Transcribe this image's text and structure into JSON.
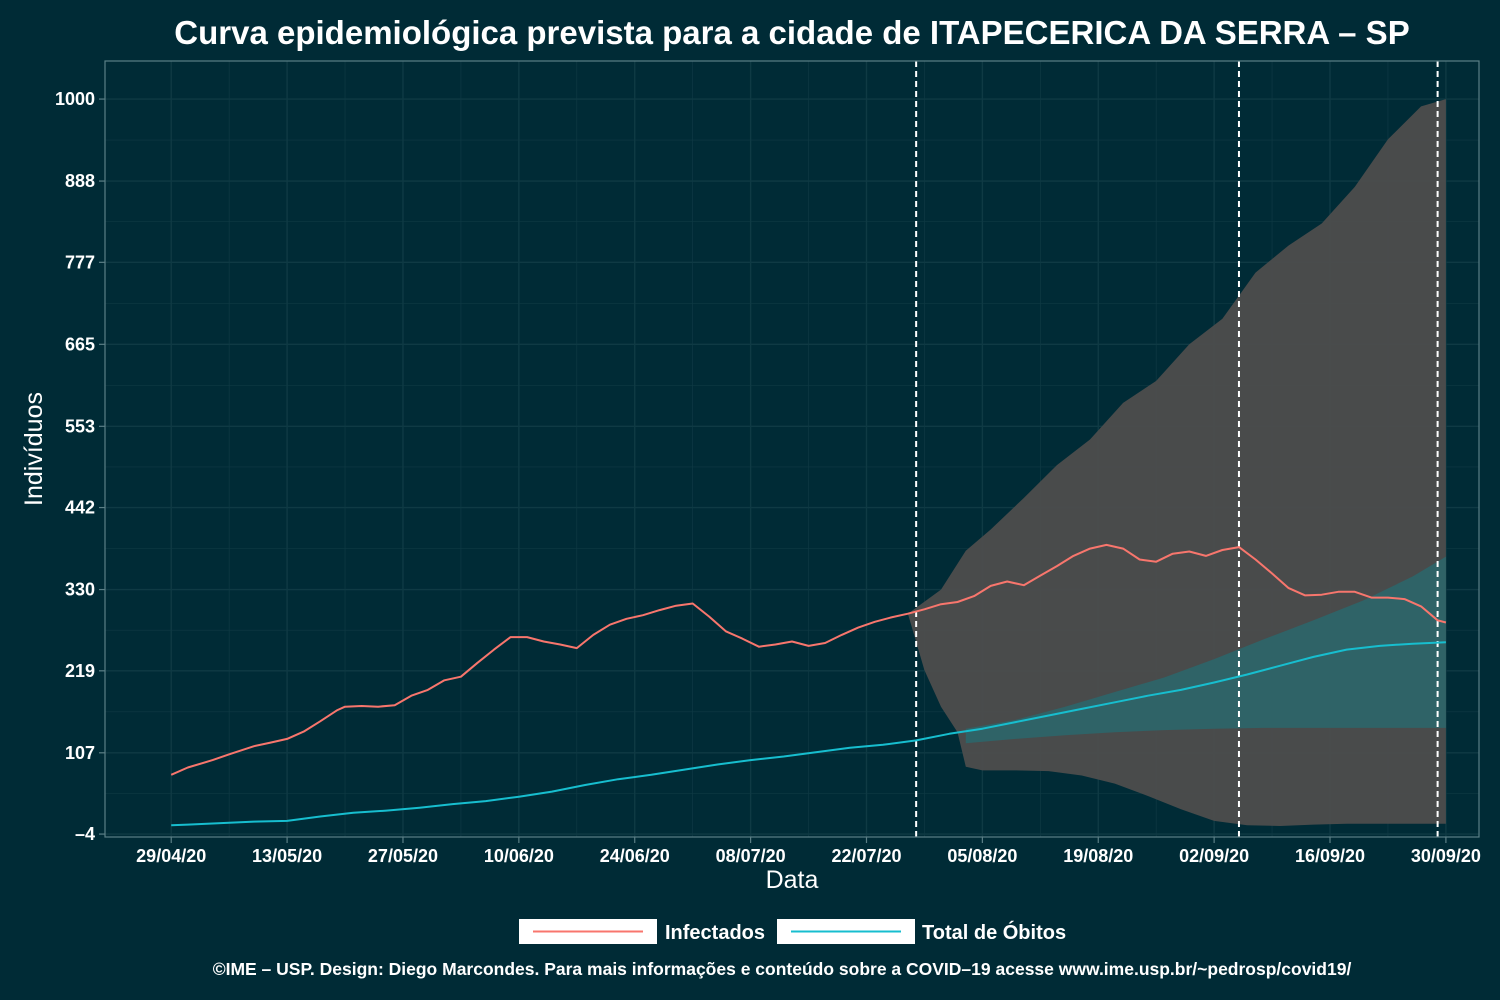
{
  "chart_data": {
    "type": "line",
    "title": "Curva epidemiológica prevista para a cidade de ITAPECERICA DA SERRA – SP",
    "xlabel": "Data",
    "ylabel": "Indivíduos",
    "x_start": "2020-04-29",
    "x_end": "2020-09-30",
    "xlim": [
      "2020-04-21",
      "2020-10-04"
    ],
    "ylim": [
      -8,
      1052
    ],
    "x_ticks": [
      {
        "date": "2020-04-29",
        "label": "29/04/20"
      },
      {
        "date": "2020-05-13",
        "label": "13/05/20"
      },
      {
        "date": "2020-05-27",
        "label": "27/05/20"
      },
      {
        "date": "2020-06-10",
        "label": "10/06/20"
      },
      {
        "date": "2020-06-24",
        "label": "24/06/20"
      },
      {
        "date": "2020-07-08",
        "label": "08/07/20"
      },
      {
        "date": "2020-07-22",
        "label": "22/07/20"
      },
      {
        "date": "2020-08-05",
        "label": "05/08/20"
      },
      {
        "date": "2020-08-19",
        "label": "19/08/20"
      },
      {
        "date": "2020-09-02",
        "label": "02/09/20"
      },
      {
        "date": "2020-09-16",
        "label": "16/09/20"
      },
      {
        "date": "2020-09-30",
        "label": "30/09/20"
      }
    ],
    "y_ticks": [
      {
        "value": -4,
        "label": "–4"
      },
      {
        "value": 107,
        "label": "107"
      },
      {
        "value": 219,
        "label": "219"
      },
      {
        "value": 330,
        "label": "330"
      },
      {
        "value": 442,
        "label": "442"
      },
      {
        "value": 553,
        "label": "553"
      },
      {
        "value": 665,
        "label": "665"
      },
      {
        "value": 777,
        "label": "777"
      },
      {
        "value": 888,
        "label": "888"
      },
      {
        "value": 1000,
        "label": "1000"
      }
    ],
    "vlines": [
      "2020-07-28",
      "2020-09-05",
      "2020-09-29"
    ],
    "series": [
      {
        "name": "Infectados",
        "color": "#f8766d",
        "points": [
          [
            "2020-04-29",
            77
          ],
          [
            "2020-05-01",
            87
          ],
          [
            "2020-05-04",
            97
          ],
          [
            "2020-05-06",
            105
          ],
          [
            "2020-05-09",
            116
          ],
          [
            "2020-05-11",
            121
          ],
          [
            "2020-05-13",
            126
          ],
          [
            "2020-05-15",
            136
          ],
          [
            "2020-05-17",
            150
          ],
          [
            "2020-05-19",
            165
          ],
          [
            "2020-05-20",
            170
          ],
          [
            "2020-05-22",
            171
          ],
          [
            "2020-05-24",
            170
          ],
          [
            "2020-05-26",
            172
          ],
          [
            "2020-05-28",
            185
          ],
          [
            "2020-05-30",
            193
          ],
          [
            "2020-06-01",
            206
          ],
          [
            "2020-06-03",
            211
          ],
          [
            "2020-06-05",
            230
          ],
          [
            "2020-06-07",
            248
          ],
          [
            "2020-06-09",
            265
          ],
          [
            "2020-06-11",
            265
          ],
          [
            "2020-06-13",
            259
          ],
          [
            "2020-06-15",
            255
          ],
          [
            "2020-06-17",
            250
          ],
          [
            "2020-06-19",
            268
          ],
          [
            "2020-06-21",
            282
          ],
          [
            "2020-06-23",
            290
          ],
          [
            "2020-06-25",
            295
          ],
          [
            "2020-06-27",
            302
          ],
          [
            "2020-06-29",
            308
          ],
          [
            "2020-07-01",
            311
          ],
          [
            "2020-07-03",
            293
          ],
          [
            "2020-07-05",
            273
          ],
          [
            "2020-07-07",
            263
          ],
          [
            "2020-07-09",
            252
          ],
          [
            "2020-07-11",
            255
          ],
          [
            "2020-07-13",
            259
          ],
          [
            "2020-07-15",
            253
          ],
          [
            "2020-07-17",
            257
          ],
          [
            "2020-07-19",
            268
          ],
          [
            "2020-07-21",
            278
          ],
          [
            "2020-07-23",
            286
          ],
          [
            "2020-07-25",
            292
          ],
          [
            "2020-07-27",
            297
          ],
          [
            "2020-07-29",
            303
          ],
          [
            "2020-07-31",
            310
          ],
          [
            "2020-08-02",
            313
          ],
          [
            "2020-08-04",
            321
          ],
          [
            "2020-08-06",
            335
          ],
          [
            "2020-08-08",
            341
          ],
          [
            "2020-08-10",
            336
          ],
          [
            "2020-08-12",
            349
          ],
          [
            "2020-08-14",
            362
          ],
          [
            "2020-08-16",
            376
          ],
          [
            "2020-08-18",
            386
          ],
          [
            "2020-08-20",
            391
          ],
          [
            "2020-08-22",
            386
          ],
          [
            "2020-08-24",
            371
          ],
          [
            "2020-08-26",
            368
          ],
          [
            "2020-08-28",
            379
          ],
          [
            "2020-08-30",
            382
          ],
          [
            "2020-09-01",
            376
          ],
          [
            "2020-09-03",
            384
          ],
          [
            "2020-09-05",
            388
          ],
          [
            "2020-09-07",
            371
          ],
          [
            "2020-09-09",
            352
          ],
          [
            "2020-09-11",
            332
          ],
          [
            "2020-09-13",
            322
          ],
          [
            "2020-09-15",
            323
          ],
          [
            "2020-09-17",
            327
          ],
          [
            "2020-09-19",
            327
          ],
          [
            "2020-09-21",
            319
          ],
          [
            "2020-09-23",
            319
          ],
          [
            "2020-09-25",
            317
          ],
          [
            "2020-09-27",
            307
          ],
          [
            "2020-09-29",
            288
          ],
          [
            "2020-09-30",
            285
          ]
        ]
      },
      {
        "name": "Total de Óbitos",
        "color": "#17becf",
        "points": [
          [
            "2020-04-29",
            8
          ],
          [
            "2020-05-01",
            9
          ],
          [
            "2020-05-05",
            11
          ],
          [
            "2020-05-09",
            13
          ],
          [
            "2020-05-13",
            14
          ],
          [
            "2020-05-17",
            20
          ],
          [
            "2020-05-21",
            25
          ],
          [
            "2020-05-25",
            28
          ],
          [
            "2020-05-29",
            32
          ],
          [
            "2020-06-02",
            37
          ],
          [
            "2020-06-06",
            41
          ],
          [
            "2020-06-10",
            47
          ],
          [
            "2020-06-14",
            54
          ],
          [
            "2020-06-18",
            63
          ],
          [
            "2020-06-22",
            71
          ],
          [
            "2020-06-26",
            77
          ],
          [
            "2020-06-30",
            84
          ],
          [
            "2020-07-04",
            91
          ],
          [
            "2020-07-08",
            97
          ],
          [
            "2020-07-12",
            102
          ],
          [
            "2020-07-16",
            108
          ],
          [
            "2020-07-20",
            114
          ],
          [
            "2020-07-24",
            118
          ],
          [
            "2020-07-28",
            124
          ],
          [
            "2020-08-01",
            133
          ],
          [
            "2020-08-05",
            140
          ],
          [
            "2020-08-09",
            149
          ],
          [
            "2020-08-13",
            158
          ],
          [
            "2020-08-17",
            167
          ],
          [
            "2020-08-21",
            176
          ],
          [
            "2020-08-25",
            185
          ],
          [
            "2020-08-29",
            193
          ],
          [
            "2020-09-02",
            203
          ],
          [
            "2020-09-06",
            214
          ],
          [
            "2020-09-10",
            226
          ],
          [
            "2020-09-14",
            238
          ],
          [
            "2020-09-18",
            248
          ],
          [
            "2020-09-22",
            253
          ],
          [
            "2020-09-26",
            256
          ],
          [
            "2020-09-30",
            258
          ]
        ]
      }
    ],
    "bands": [
      {
        "series": "Infectados",
        "color": "#4d4d4d",
        "upper": [
          [
            "2020-07-27",
            297
          ],
          [
            "2020-07-31",
            330
          ],
          [
            "2020-08-03",
            383
          ],
          [
            "2020-08-06",
            412
          ],
          [
            "2020-08-10",
            455
          ],
          [
            "2020-08-14",
            500
          ],
          [
            "2020-08-18",
            535
          ],
          [
            "2020-08-22",
            585
          ],
          [
            "2020-08-26",
            615
          ],
          [
            "2020-08-30",
            665
          ],
          [
            "2020-09-03",
            700
          ],
          [
            "2020-09-07",
            763
          ],
          [
            "2020-09-11",
            800
          ],
          [
            "2020-09-15",
            830
          ],
          [
            "2020-09-19",
            880
          ],
          [
            "2020-09-23",
            945
          ],
          [
            "2020-09-27",
            990
          ],
          [
            "2020-09-30",
            1000
          ]
        ],
        "lower": [
          [
            "2020-07-27",
            297
          ],
          [
            "2020-07-29",
            220
          ],
          [
            "2020-07-31",
            170
          ],
          [
            "2020-08-02",
            135
          ],
          [
            "2020-08-03",
            88
          ],
          [
            "2020-08-05",
            83
          ],
          [
            "2020-08-09",
            83
          ],
          [
            "2020-08-13",
            82
          ],
          [
            "2020-08-17",
            76
          ],
          [
            "2020-08-21",
            65
          ],
          [
            "2020-08-25",
            48
          ],
          [
            "2020-08-29",
            30
          ],
          [
            "2020-09-02",
            14
          ],
          [
            "2020-09-06",
            8
          ],
          [
            "2020-09-10",
            7
          ],
          [
            "2020-09-14",
            9
          ],
          [
            "2020-09-18",
            10
          ],
          [
            "2020-09-22",
            10
          ],
          [
            "2020-09-26",
            10
          ],
          [
            "2020-09-30",
            10
          ]
        ]
      },
      {
        "series": "Total de Óbitos",
        "color": "#2e6468",
        "upper": [
          [
            "2020-08-03",
            140
          ],
          [
            "2020-08-09",
            152
          ],
          [
            "2020-08-15",
            170
          ],
          [
            "2020-08-21",
            190
          ],
          [
            "2020-08-27",
            210
          ],
          [
            "2020-09-02",
            235
          ],
          [
            "2020-09-08",
            262
          ],
          [
            "2020-09-14",
            288
          ],
          [
            "2020-09-20",
            315
          ],
          [
            "2020-09-26",
            348
          ],
          [
            "2020-09-30",
            375
          ]
        ],
        "lower": [
          [
            "2020-08-03",
            120
          ],
          [
            "2020-08-09",
            126
          ],
          [
            "2020-08-15",
            131
          ],
          [
            "2020-08-21",
            135
          ],
          [
            "2020-08-27",
            138
          ],
          [
            "2020-09-02",
            140
          ],
          [
            "2020-09-08",
            141
          ],
          [
            "2020-09-14",
            141
          ],
          [
            "2020-09-20",
            141
          ],
          [
            "2020-09-26",
            141
          ],
          [
            "2020-09-30",
            141
          ]
        ]
      }
    ],
    "legend_position": "bottom"
  },
  "colors": {
    "background": "#002b36",
    "plot_border": "#5b7f86",
    "grid": "#0f3a44"
  },
  "credit": "©IME – USP. Design: Diego Marcondes. Para mais informações e conteúdo sobre a COVID–19 acesse www.ime.usp.br/~pedrosp/covid19/"
}
